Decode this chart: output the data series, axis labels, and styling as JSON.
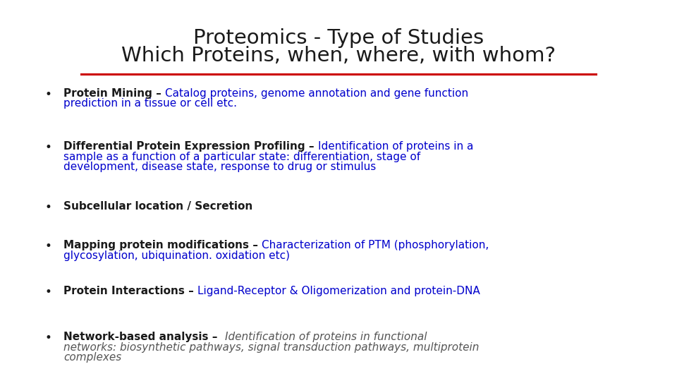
{
  "title_line1": "Proteomics - Type of Studies",
  "title_line2": "Which Proteins, when, where, with whom?",
  "title_color": "#1a1a1a",
  "separator_color": "#cc0000",
  "background_color": "#ffffff",
  "bullet_color": "#1a1a1a",
  "title_fontsize": 21,
  "bullet_fontsize": 11,
  "bullets": [
    {
      "bold_text": "Protein Mining",
      "separator": " – ",
      "rest_lines": [
        "Catalog proteins, genome annotation and gene function",
        "prediction in a tissue or cell etc."
      ],
      "bold_color": "#1a1a1a",
      "rest_color": "#0000cc",
      "rest_italic": false
    },
    {
      "bold_text": "Differential Protein Expression Profiling",
      "separator": " – ",
      "rest_lines": [
        "Identification of proteins in a",
        "sample as a function of a particular state: differentiation, stage of",
        "development, disease state, response to drug or stimulus"
      ],
      "bold_color": "#1a1a1a",
      "rest_color": "#0000cc",
      "rest_italic": false
    },
    {
      "bold_text": "Subcellular location / Secretion",
      "separator": "",
      "rest_lines": [],
      "bold_color": "#1a1a1a",
      "rest_color": "#0000cc",
      "rest_italic": false
    },
    {
      "bold_text": "Mapping protein modifications",
      "separator": " – ",
      "rest_lines": [
        "Characterization of PTM (phosphorylation,",
        "glycosylation, ubiquination. oxidation etc)"
      ],
      "bold_color": "#1a1a1a",
      "rest_color": "#0000cc",
      "rest_italic": false
    },
    {
      "bold_text": "Protein Interactions",
      "separator": " – ",
      "rest_lines": [
        "Ligand-Receptor & Oligomerization and protein-DNA"
      ],
      "bold_color": "#1a1a1a",
      "rest_color": "#0000cc",
      "rest_italic": false
    },
    {
      "bold_text": "Network-based analysis",
      "separator": " –  ",
      "rest_lines": [
        "Identification of proteins in functional",
        "networks: biosynthetic pathways, signal transduction pathways, multiprotein",
        "complexes"
      ],
      "bold_color": "#1a1a1a",
      "rest_color": "#555555",
      "rest_italic": true
    }
  ]
}
